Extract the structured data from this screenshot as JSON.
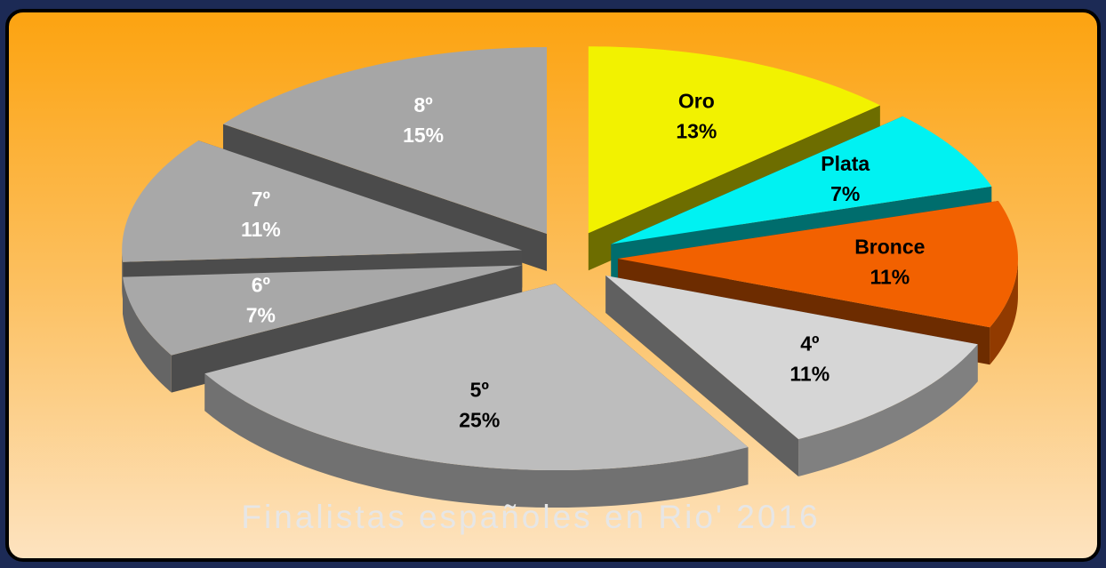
{
  "chart_data": {
    "type": "pie",
    "title": "Finalistas españoles en Rio' 2016",
    "categories": [
      "Oro",
      "Plata",
      "Bronce",
      "4º",
      "5º",
      "6º",
      "7º",
      "8º"
    ],
    "values": [
      13,
      7,
      11,
      11,
      25,
      7,
      11,
      15
    ],
    "value_labels": [
      "13%",
      "7%",
      "11%",
      "11%",
      "25%",
      "7%",
      "11%",
      "15%"
    ],
    "colors": [
      "#f2f200",
      "#00f2f2",
      "#f26100",
      "#d6d6d6",
      "#bdbdbd",
      "#a8a8a8",
      "#a8a8a8",
      "#a6a6a6"
    ]
  }
}
